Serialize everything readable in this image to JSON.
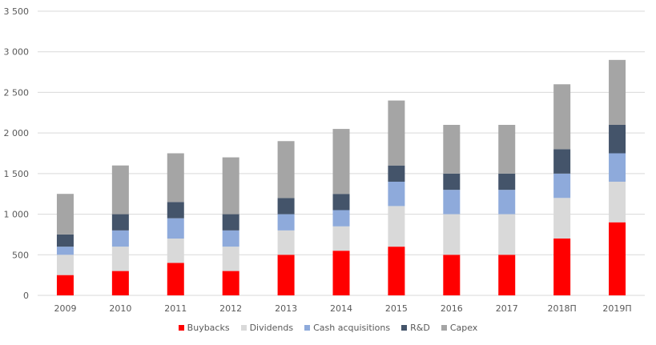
{
  "chart_data": {
    "type": "bar",
    "stacked": true,
    "categories": [
      "2009",
      "2010",
      "2011",
      "2012",
      "2013",
      "2014",
      "2015",
      "2016",
      "2017",
      "2018П",
      "2019П"
    ],
    "series": [
      {
        "name": "Buybacks",
        "color": "#ff0000",
        "values": [
          250,
          300,
          400,
          300,
          500,
          550,
          600,
          500,
          500,
          700,
          900
        ]
      },
      {
        "name": "Dividends",
        "color": "#d9d9d9",
        "values": [
          250,
          300,
          300,
          300,
          300,
          300,
          500,
          500,
          500,
          500,
          500
        ]
      },
      {
        "name": "Cash acquisitions",
        "color": "#8eaadb",
        "values": [
          100,
          200,
          250,
          200,
          200,
          200,
          300,
          300,
          300,
          300,
          350
        ]
      },
      {
        "name": "R&D",
        "color": "#44546a",
        "values": [
          150,
          200,
          200,
          200,
          200,
          200,
          200,
          200,
          200,
          300,
          350
        ]
      },
      {
        "name": "Capex",
        "color": "#a5a5a5",
        "values": [
          500,
          600,
          600,
          700,
          700,
          800,
          800,
          600,
          600,
          800,
          800
        ]
      }
    ],
    "yticks": [
      "0",
      "500",
      "1 000",
      "1 500",
      "2 000",
      "2 500",
      "3 000",
      "3 500"
    ],
    "ylim": [
      0,
      3500
    ],
    "grid": true,
    "legend": "bottom"
  }
}
